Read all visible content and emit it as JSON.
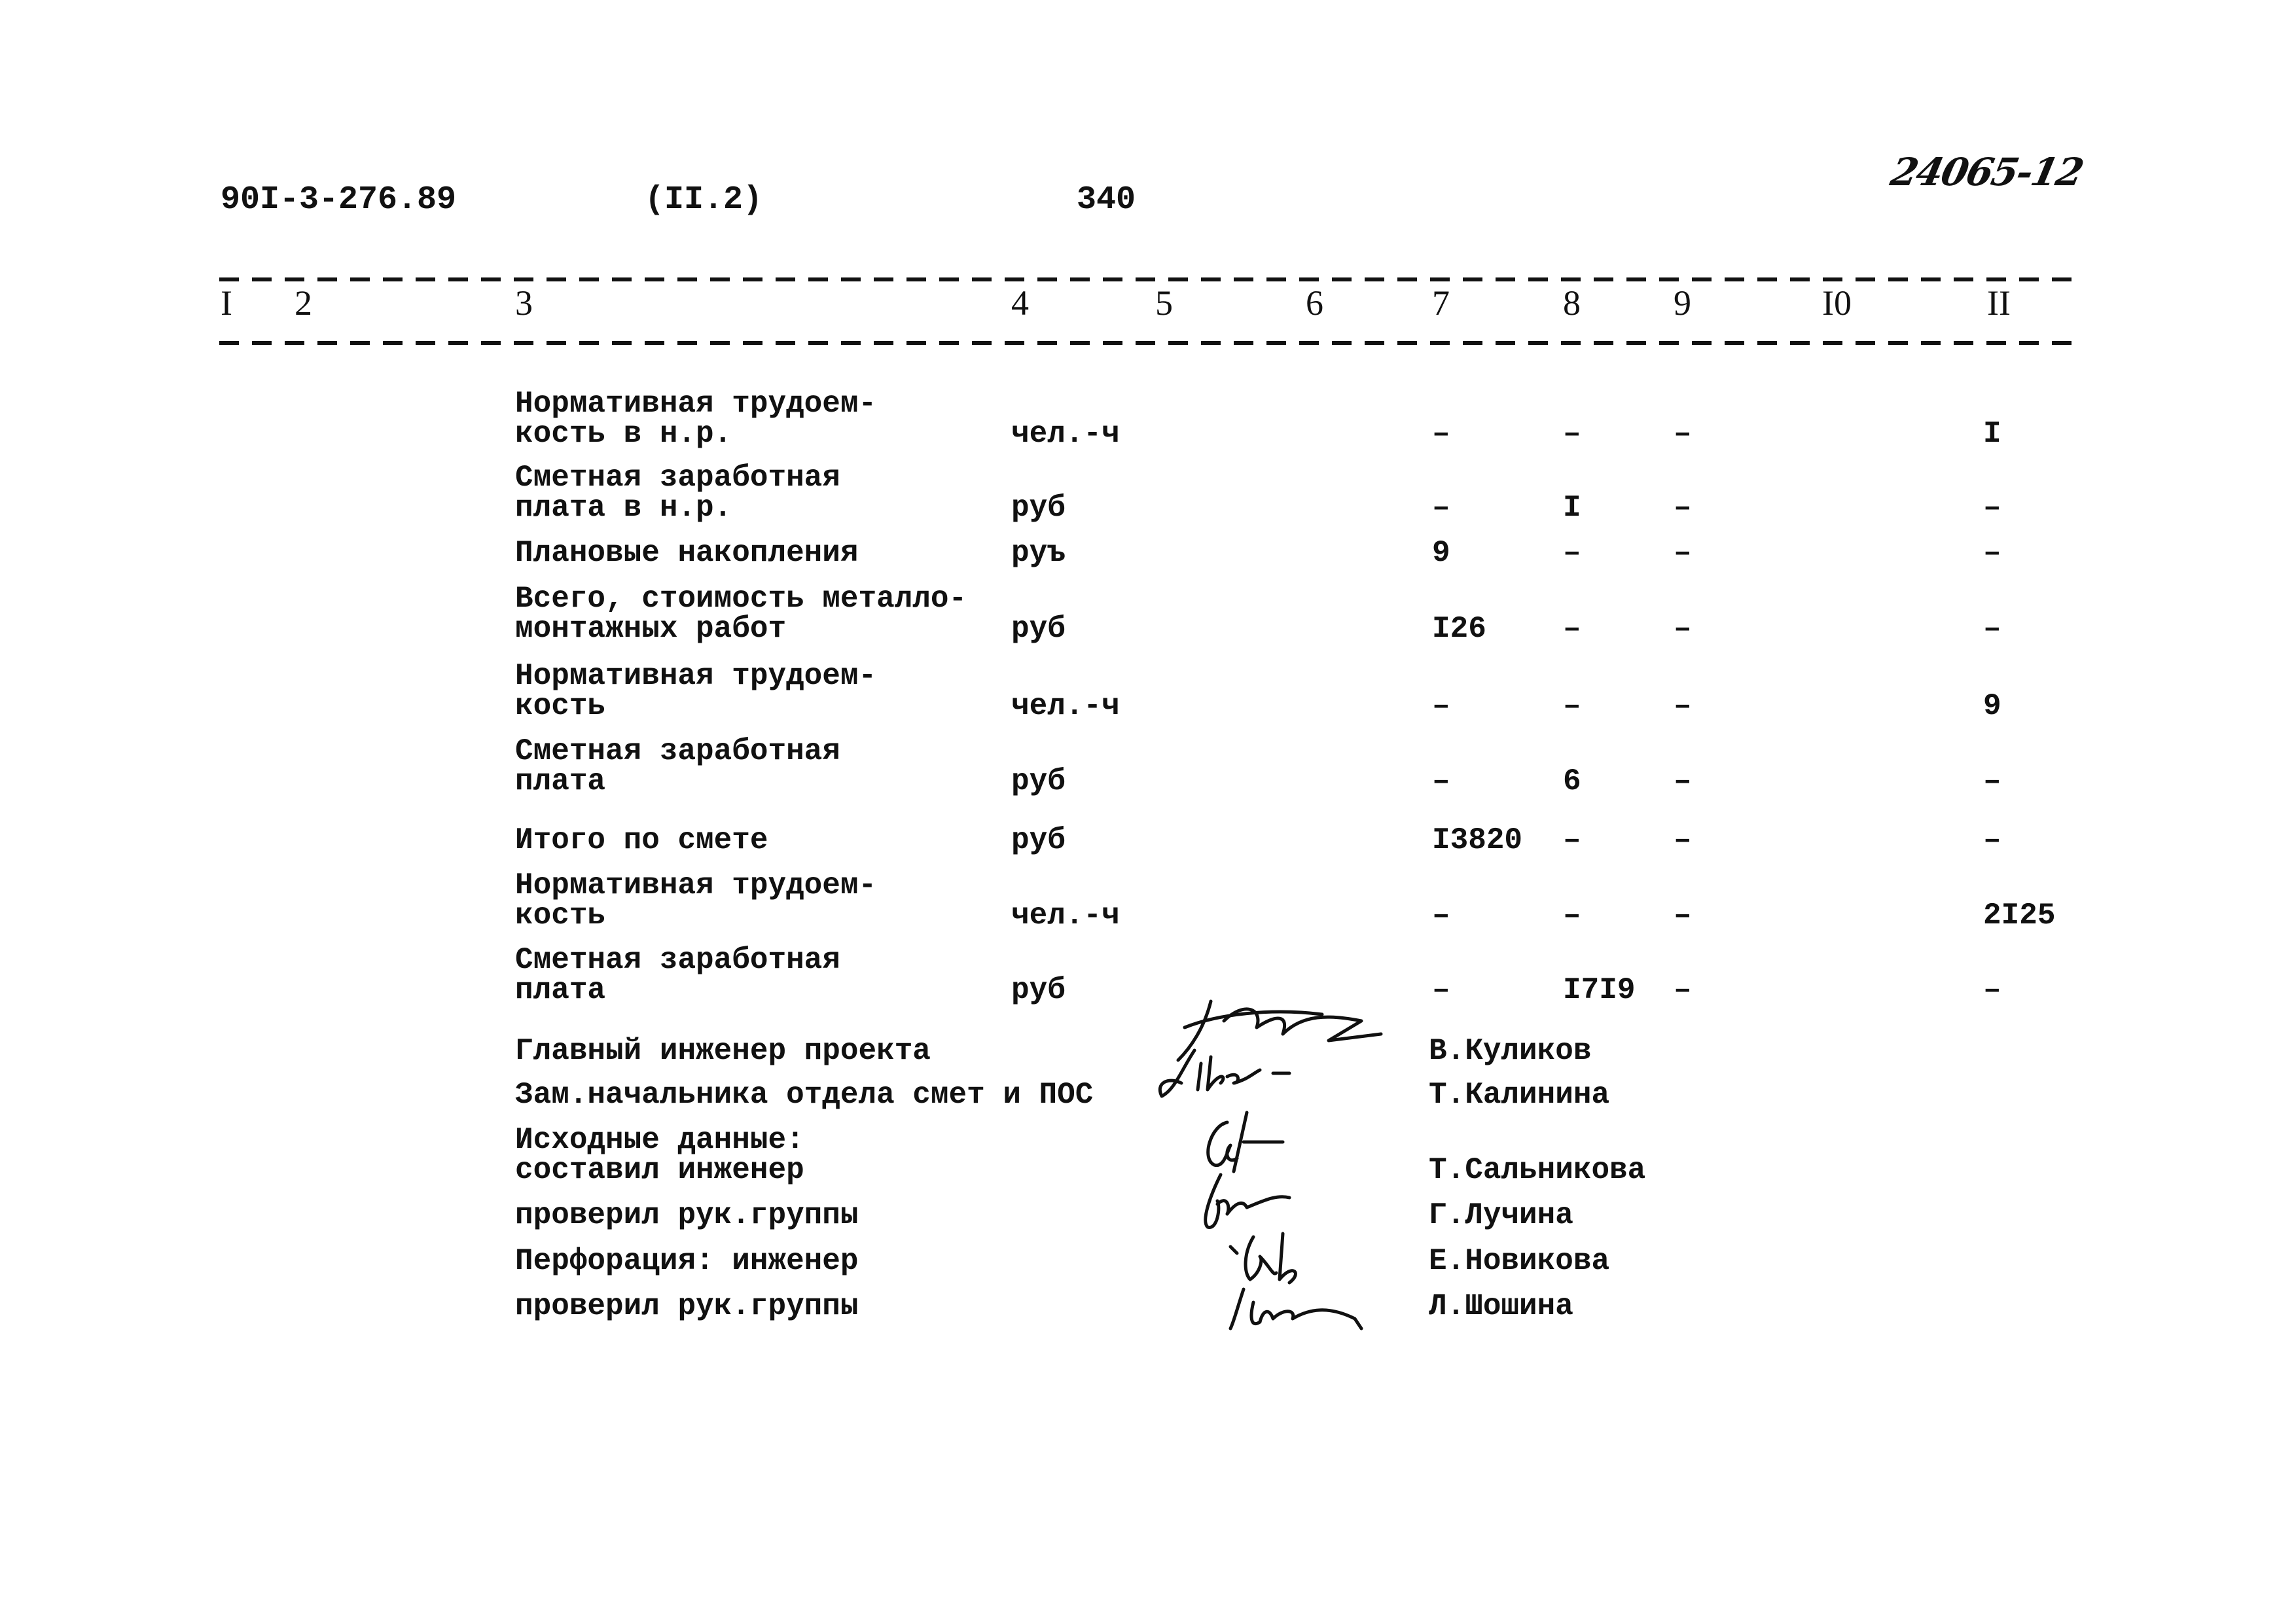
{
  "header": {
    "doc_code": "90I-3-276.89",
    "section": "(II.2)",
    "page_number": "340",
    "handwritten_number": "24065-12"
  },
  "columns": [
    "I",
    "2",
    "3",
    "4",
    "5",
    "6",
    "7",
    "8",
    "9",
    "I0",
    "II"
  ],
  "rows": [
    {
      "label": [
        "Нормативная трудоем-",
        "кость в н.р."
      ],
      "unit": "чел.-ч",
      "c7": "–",
      "c8": "–",
      "c9": "–",
      "c11": "I"
    },
    {
      "label": [
        "Сметная заработная",
        "плата в н.р."
      ],
      "unit": "руб",
      "c7": "–",
      "c8": "I",
      "c9": "–",
      "c11": "–"
    },
    {
      "label": [
        "Плановые накопления"
      ],
      "unit": "руъ",
      "c7": "9",
      "c8": "–",
      "c9": "–",
      "c11": "–"
    },
    {
      "label": [
        "Всего, стоимость металло-",
        "монтажных работ"
      ],
      "unit": "руб",
      "c7": "I26",
      "c8": "–",
      "c9": "–",
      "c11": "–"
    },
    {
      "label": [
        "Нормативная трудоем-",
        "кость"
      ],
      "unit": "чел.-ч",
      "c7": "–",
      "c8": "–",
      "c9": "–",
      "c11": "9"
    },
    {
      "label": [
        "Сметная заработная",
        "плата"
      ],
      "unit": "руб",
      "c7": "–",
      "c8": "6",
      "c9": "–",
      "c11": "–"
    },
    {
      "label": [
        "Итого по смете"
      ],
      "unit": "руб",
      "c7": "I3820",
      "c8": "–",
      "c9": "–",
      "c11": "–"
    },
    {
      "label": [
        "Нормативная трудоем-",
        "кость"
      ],
      "unit": "чел.-ч",
      "c7": "–",
      "c8": "–",
      "c9": "–",
      "c11": "2I25"
    },
    {
      "label": [
        "Сметная заработная",
        "плата"
      ],
      "unit": "руб",
      "c7": "–",
      "c8": "I7I9",
      "c9": "–",
      "c11": "–"
    }
  ],
  "signatures": [
    {
      "role": [
        "Главный инженер проекта"
      ],
      "name": "В.Куликов"
    },
    {
      "role": [
        "Зам.начальника отдела смет и ПОС"
      ],
      "name": "Т.Калинина"
    },
    {
      "role": [
        "Исходные данные:",
        "составил инженер"
      ],
      "name": "Т.Сальникова"
    },
    {
      "role": [
        "проверил рук.группы"
      ],
      "name": "Г.Лучина"
    },
    {
      "role": [
        "Перфорация: инженер"
      ],
      "name": "Е.Новикова"
    },
    {
      "role": [
        "проверил рук.группы"
      ],
      "name": "Л.Шошина"
    }
  ]
}
